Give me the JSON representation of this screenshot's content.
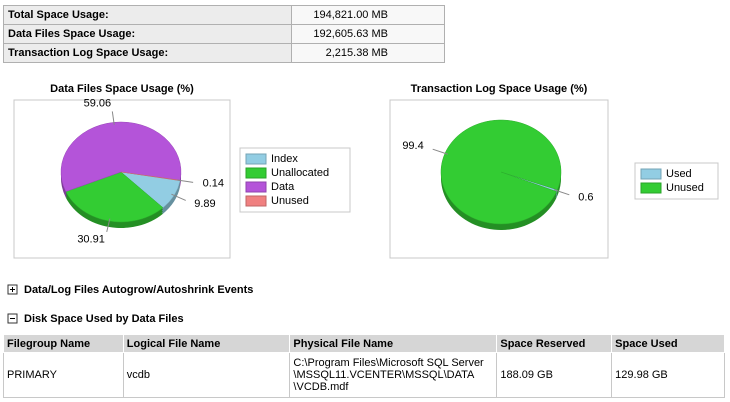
{
  "summary": {
    "rows": [
      [
        "Total Space Usage:",
        "194,821.00 MB"
      ],
      [
        "Data Files Space Usage:",
        "192,605.63 MB"
      ],
      [
        "Transaction Log Space Usage:",
        "2,215.38 MB"
      ]
    ]
  },
  "chart_data": [
    {
      "type": "pie",
      "title": "Data Files Space Usage (%)",
      "legend": "right",
      "categories": [
        "Index",
        "Unallocated",
        "Data",
        "Unused"
      ],
      "values": [
        9.89,
        30.91,
        59.06,
        0.14
      ],
      "colors": [
        "#92cde3",
        "#33cc33",
        "#b454d9",
        "#f08080"
      ]
    },
    {
      "type": "pie",
      "title": "Transaction Log Space Usage (%)",
      "legend": "right",
      "categories": [
        "Used",
        "Unused"
      ],
      "values": [
        0.6,
        99.4
      ],
      "colors": [
        "#92cde3",
        "#33cc33"
      ]
    }
  ],
  "sections": [
    {
      "label": "Data/Log Files Autogrow/Autoshrink Events",
      "expanded": false
    },
    {
      "label": "Disk Space Used by Data Files",
      "expanded": true
    }
  ],
  "table": {
    "header": [
      "Filegroup Name",
      "Logical File Name",
      "Physical File Name",
      "Space Reserved",
      "Space Used"
    ],
    "rows": [
      [
        "PRIMARY",
        "vcdb",
        [
          "C:\\Program Files\\Microsoft SQL Server",
          "\\MSSQL11.VCENTER\\MSSQL\\DATA",
          "\\VCDB.mdf"
        ],
        "188.09 GB",
        "129.98 GB"
      ]
    ]
  }
}
